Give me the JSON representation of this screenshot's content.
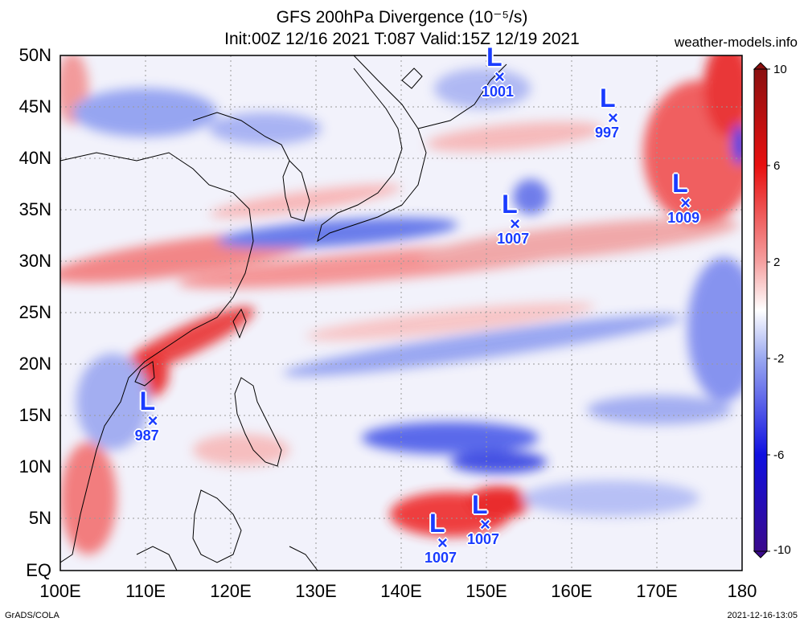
{
  "title": {
    "line1": "GFS 200hPa Divergence (10⁻⁵/s)",
    "line2": "Init:00Z 12/16 2021 T:087 Valid:15Z 12/19 2021"
  },
  "site": "weather-models.info",
  "footer": {
    "left": "GrADS/COLA",
    "right": "2021-12-16-13:05"
  },
  "lat_labels": [
    "50N",
    "45N",
    "40N",
    "35N",
    "30N",
    "25N",
    "20N",
    "15N",
    "10N",
    "5N",
    "EQ"
  ],
  "lon_labels": [
    "100E",
    "110E",
    "120E",
    "130E",
    "140E",
    "150E",
    "160E",
    "170E",
    "180"
  ],
  "colorbar": {
    "labels": [
      "10",
      "6",
      "2",
      "-2",
      "-6",
      "-10"
    ],
    "min": -10,
    "max": 10,
    "colors": [
      "#3a0a8c",
      "#1010e0",
      "#9aa8f0",
      "#ffffff",
      "#f5a0a0",
      "#e81010",
      "#8b1010"
    ]
  },
  "lows": [
    {
      "pressure": "1001",
      "lon": 151.7,
      "lat": 48.0
    },
    {
      "pressure": "997",
      "lon": 165.0,
      "lat": 44.0
    },
    {
      "pressure": "1007",
      "lon": 153.5,
      "lat": 33.7
    },
    {
      "pressure": "1009",
      "lon": 173.5,
      "lat": 35.7
    },
    {
      "pressure": "987",
      "lon": 111.0,
      "lat": 14.6
    },
    {
      "pressure": "1007",
      "lon": 145.0,
      "lat": 2.7
    },
    {
      "pressure": "1007",
      "lon": 150.0,
      "lat": 4.5
    }
  ]
}
